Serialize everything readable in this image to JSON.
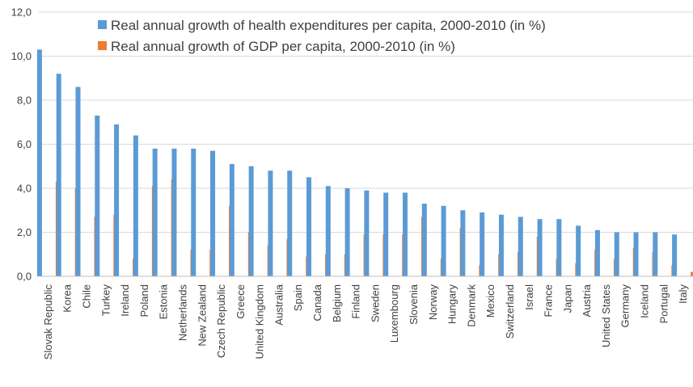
{
  "chart_data": {
    "type": "bar",
    "categories": [
      "Slovak Republic",
      "Korea",
      "Chile",
      "Turkey",
      "Ireland",
      "Poland",
      "Estonia",
      "Netherlands",
      "New Zealand",
      "Czech Republic",
      "Greece",
      "United Kingdom",
      "Australia",
      "Spain",
      "Canada",
      "Belgium",
      "Finland",
      "Sweden",
      "Luxembourg",
      "Slovenia",
      "Norway",
      "Hungary",
      "Denmark",
      "Mexico",
      "Switzerland",
      "Israel",
      "France",
      "Japan",
      "Austria",
      "United States",
      "Germany",
      "Iceland",
      "Portugal",
      "Italy"
    ],
    "series": [
      {
        "name": "Real annual growth of health expenditures per capita, 2000-2010 (in %)",
        "color": "#5B9BD5",
        "values": [
          10.3,
          9.2,
          8.6,
          7.3,
          6.9,
          6.4,
          5.8,
          5.8,
          5.8,
          5.7,
          5.1,
          5.0,
          4.8,
          4.8,
          4.5,
          4.1,
          4.0,
          3.9,
          3.8,
          3.8,
          3.3,
          3.2,
          3.0,
          2.9,
          2.8,
          2.7,
          2.6,
          2.6,
          2.3,
          2.1,
          2.0,
          2.0,
          2.0,
          1.9
        ]
      },
      {
        "name": "Real annual growth of GDP per capita, 2000-2010 (in %)",
        "color": "#ED7D31",
        "values": [
          4.3,
          4.0,
          2.7,
          2.8,
          0.8,
          4.1,
          4.4,
          1.2,
          1.2,
          3.2,
          2.0,
          1.4,
          1.7,
          0.9,
          1.0,
          1.0,
          1.9,
          1.9,
          1.9,
          2.7,
          0.8,
          2.2,
          0.5,
          1.0,
          1.1,
          1.8,
          0.8,
          0.6,
          1.2,
          0.8,
          1.3,
          1.1,
          0.5,
          0.2
        ]
      }
    ],
    "yticks": [
      "0,0",
      "2,0",
      "4,0",
      "6,0",
      "8,0",
      "10,0",
      "12,0"
    ],
    "ylim": [
      0,
      12
    ],
    "grid": true,
    "legend_position": "top"
  }
}
